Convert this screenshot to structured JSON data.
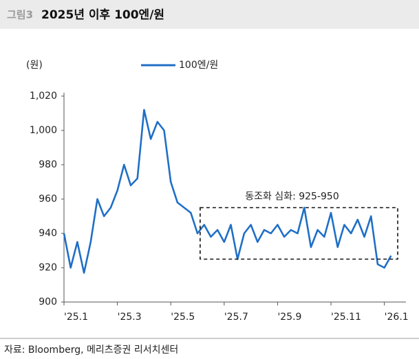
{
  "header": {
    "label": "그림3"
  },
  "source": "자료: Bloomberg, 메리츠증권 리서치센터",
  "chart_data": {
    "type": "line",
    "title": "2025년 이후 100엔/원",
    "y_unit": "(원)",
    "x": [
      0,
      0.25,
      0.5,
      0.75,
      1,
      1.25,
      1.5,
      1.75,
      2,
      2.25,
      2.5,
      2.75,
      3,
      3.25,
      3.5,
      3.75,
      4,
      4.25,
      4.5,
      4.75,
      5,
      5.25,
      5.5,
      5.75,
      6,
      6.25,
      6.5,
      6.75,
      7,
      7.25,
      7.5,
      7.75,
      8,
      8.25,
      8.5,
      8.75,
      9,
      9.25,
      9.5,
      9.75,
      10,
      10.25,
      10.5,
      10.75,
      11,
      11.25,
      11.5,
      11.75,
      12,
      12.25
    ],
    "series": [
      {
        "name": "100엔/원",
        "color": "#1f6fc6",
        "values": [
          940,
          920,
          935,
          917,
          935,
          960,
          950,
          955,
          965,
          980,
          968,
          972,
          1012,
          995,
          1005,
          1000,
          970,
          958,
          955,
          952,
          940,
          945,
          938,
          942,
          935,
          945,
          925,
          940,
          945,
          935,
          942,
          940,
          945,
          938,
          942,
          940,
          955,
          932,
          942,
          938,
          952,
          932,
          945,
          940,
          948,
          938,
          950,
          922,
          920,
          927
        ]
      }
    ],
    "xlim": [
      0,
      12.55
    ],
    "xticks": [
      {
        "value": 0,
        "label": "'25.1"
      },
      {
        "value": 2,
        "label": "'25.3"
      },
      {
        "value": 4,
        "label": "'25.5"
      },
      {
        "value": 6,
        "label": "'25.7"
      },
      {
        "value": 8,
        "label": "'25.9"
      },
      {
        "value": 10,
        "label": "'25.11"
      },
      {
        "value": 12,
        "label": "'26.1"
      }
    ],
    "ylim": [
      900,
      1020
    ],
    "yticks": [
      900,
      920,
      940,
      960,
      980,
      {
        "value": 1000,
        "label": "1,000"
      },
      {
        "value": 1020,
        "label": "1,020"
      }
    ],
    "grid": false,
    "annotation": {
      "text": "동조화 심화: 925-950",
      "xrange": [
        5.1,
        12.5
      ],
      "yrange": [
        925,
        955
      ]
    }
  }
}
